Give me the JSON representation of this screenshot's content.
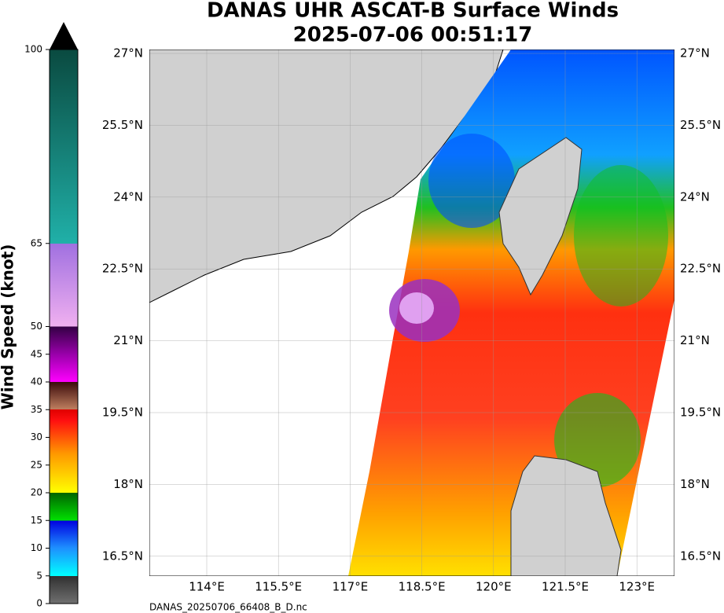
{
  "header": {
    "title": "DANAS UHR ASCAT-B Surface Winds",
    "subtitle": "2025-07-06 00:51:17"
  },
  "colorbar": {
    "label": "Wind Speed (knot)",
    "ticks": [
      0,
      5,
      10,
      15,
      20,
      25,
      30,
      35,
      40,
      45,
      50,
      65,
      100
    ]
  },
  "map": {
    "lat_labels": [
      "27°N",
      "25.5°N",
      "24°N",
      "22.5°N",
      "21°N",
      "19.5°N",
      "18°N",
      "16.5°N"
    ],
    "lon_labels": [
      "114°E",
      "115.5°E",
      "117°E",
      "118.5°E",
      "120°E",
      "121.5°E",
      "123°E"
    ]
  },
  "footer": {
    "file": "DANAS_20250706_66408_B_D.nc"
  }
}
